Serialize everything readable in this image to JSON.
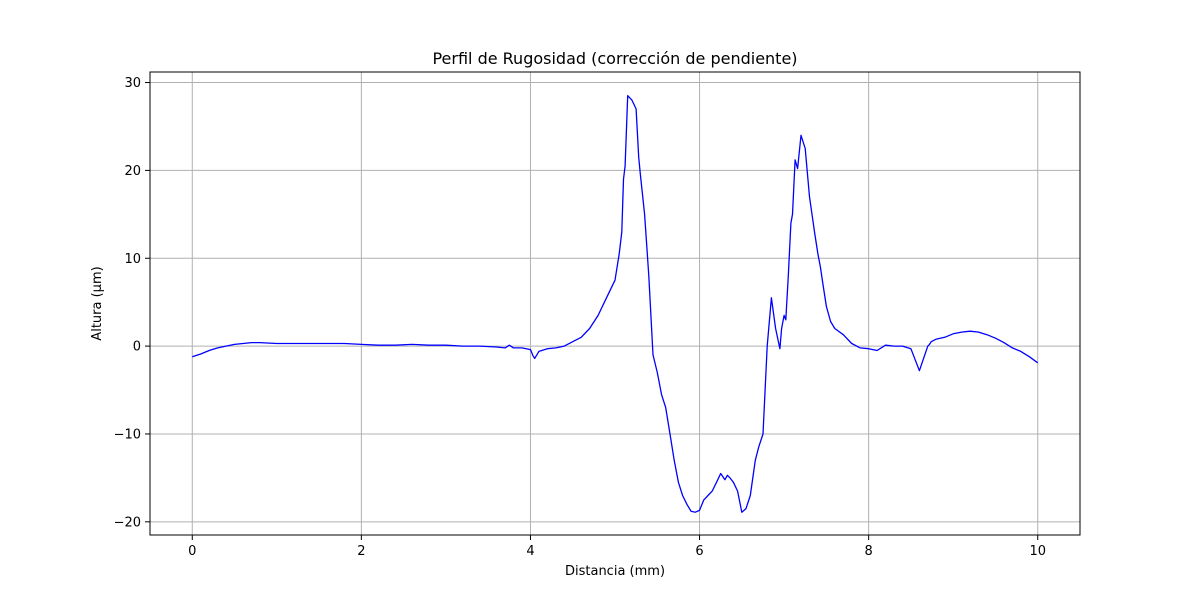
{
  "chart_data": {
    "type": "line",
    "title": "Perfil de Rugosidad (corrección de pendiente)",
    "xlabel": "Distancia (mm)",
    "ylabel": "Altura (µm)",
    "xlim": [
      -0.5,
      10.5
    ],
    "ylim": [
      -21.5,
      31.2
    ],
    "xticks": [
      0,
      2,
      4,
      6,
      8,
      10
    ],
    "yticks": [
      -20,
      -10,
      0,
      10,
      20,
      30
    ],
    "xtick_labels": [
      "0",
      "2",
      "4",
      "6",
      "8",
      "10"
    ],
    "ytick_labels": [
      "−20",
      "−10",
      "0",
      "10",
      "20",
      "30"
    ],
    "grid": true,
    "series": [
      {
        "color": "#0000ff",
        "x": [
          0,
          0.1,
          0.2,
          0.3,
          0.4,
          0.5,
          0.6,
          0.7,
          0.8,
          1.0,
          1.2,
          1.4,
          1.6,
          1.8,
          2.0,
          2.2,
          2.4,
          2.6,
          2.8,
          3.0,
          3.2,
          3.4,
          3.6,
          3.7,
          3.75,
          3.8,
          3.9,
          4.0,
          4.03,
          4.05,
          4.1,
          4.2,
          4.3,
          4.4,
          4.5,
          4.6,
          4.7,
          4.8,
          4.9,
          5.0,
          5.05,
          5.08,
          5.1,
          5.12,
          5.15,
          5.2,
          5.25,
          5.28,
          5.3,
          5.35,
          5.4,
          5.45,
          5.5,
          5.55,
          5.6,
          5.65,
          5.7,
          5.75,
          5.8,
          5.85,
          5.9,
          5.95,
          6.0,
          6.05,
          6.1,
          6.15,
          6.2,
          6.25,
          6.3,
          6.33,
          6.36,
          6.4,
          6.45,
          6.5,
          6.55,
          6.6,
          6.63,
          6.66,
          6.7,
          6.75,
          6.8,
          6.85,
          6.9,
          6.95,
          6.97,
          7.0,
          7.02,
          7.05,
          7.08,
          7.1,
          7.13,
          7.16,
          7.2,
          7.25,
          7.3,
          7.33,
          7.36,
          7.4,
          7.43,
          7.46,
          7.5,
          7.55,
          7.6,
          7.7,
          7.8,
          7.9,
          8.0,
          8.1,
          8.2,
          8.3,
          8.4,
          8.5,
          8.6,
          8.7,
          8.72,
          8.74,
          8.8,
          8.9,
          9.0,
          9.1,
          9.2,
          9.3,
          9.4,
          9.5,
          9.6,
          9.7,
          9.8,
          9.9,
          10.0
        ],
        "y": [
          -1.2,
          -0.9,
          -0.5,
          -0.2,
          0.0,
          0.2,
          0.3,
          0.4,
          0.4,
          0.3,
          0.3,
          0.3,
          0.3,
          0.3,
          0.2,
          0.1,
          0.1,
          0.2,
          0.1,
          0.1,
          0.0,
          0.0,
          -0.1,
          -0.2,
          0.1,
          -0.2,
          -0.2,
          -0.4,
          -1.1,
          -1.4,
          -0.6,
          -0.3,
          -0.2,
          0.0,
          0.5,
          1.0,
          2.0,
          3.5,
          5.5,
          7.5,
          10.5,
          13.0,
          19.0,
          20.5,
          28.5,
          28.0,
          27.0,
          21.5,
          19.5,
          15.0,
          8.0,
          -1.0,
          -3.0,
          -5.5,
          -7.0,
          -10.0,
          -13.0,
          -15.5,
          -17.0,
          -18.0,
          -18.8,
          -18.9,
          -18.7,
          -17.5,
          -17.0,
          -16.5,
          -15.5,
          -14.5,
          -15.2,
          -14.7,
          -15.0,
          -15.5,
          -16.5,
          -18.9,
          -18.5,
          -17.0,
          -15.0,
          -13.0,
          -11.5,
          -10.0,
          0.0,
          5.5,
          2.0,
          -0.3,
          2.0,
          3.5,
          3.0,
          8.0,
          14.0,
          15.0,
          21.2,
          20.2,
          24.0,
          22.5,
          17.0,
          15.0,
          13.0,
          10.5,
          9.0,
          7.0,
          4.5,
          2.8,
          2.0,
          1.3,
          0.3,
          -0.2,
          -0.3,
          -0.5,
          0.1,
          0.0,
          0.0,
          -0.3,
          -2.8,
          0.0,
          0.2,
          0.5,
          0.8,
          1.0,
          1.4,
          1.6,
          1.7,
          1.6,
          1.3,
          0.9,
          0.4,
          -0.2,
          -0.6,
          -1.2,
          -1.9
        ]
      }
    ]
  }
}
